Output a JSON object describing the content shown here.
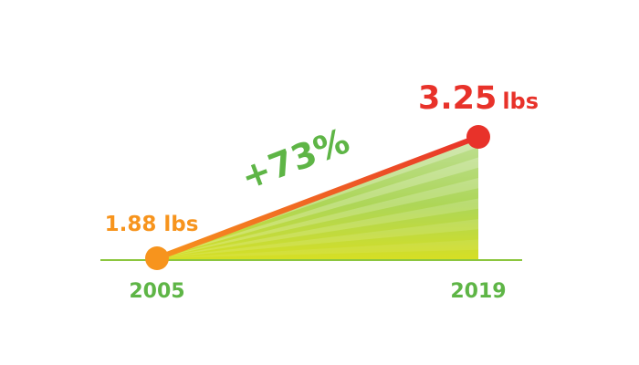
{
  "chart_data": {
    "type": "area",
    "categories": [
      "2005",
      "2019"
    ],
    "values": [
      1.88,
      3.25
    ],
    "unit": "lbs",
    "data_labels": [
      "1.88 lbs",
      "3.25 lbs"
    ],
    "data_label_numbers": [
      "3.25"
    ],
    "change_label": "+73%",
    "ylim": [
      1.88,
      3.25
    ],
    "grid": false,
    "colors": {
      "start": "#f7941d",
      "end": "#e8322a",
      "change": "#5eb546",
      "axis": "#8cc63f",
      "ticks": "#5eb546",
      "fill_top": "#8cc63f",
      "fill_bottom": "#d7df23"
    }
  }
}
